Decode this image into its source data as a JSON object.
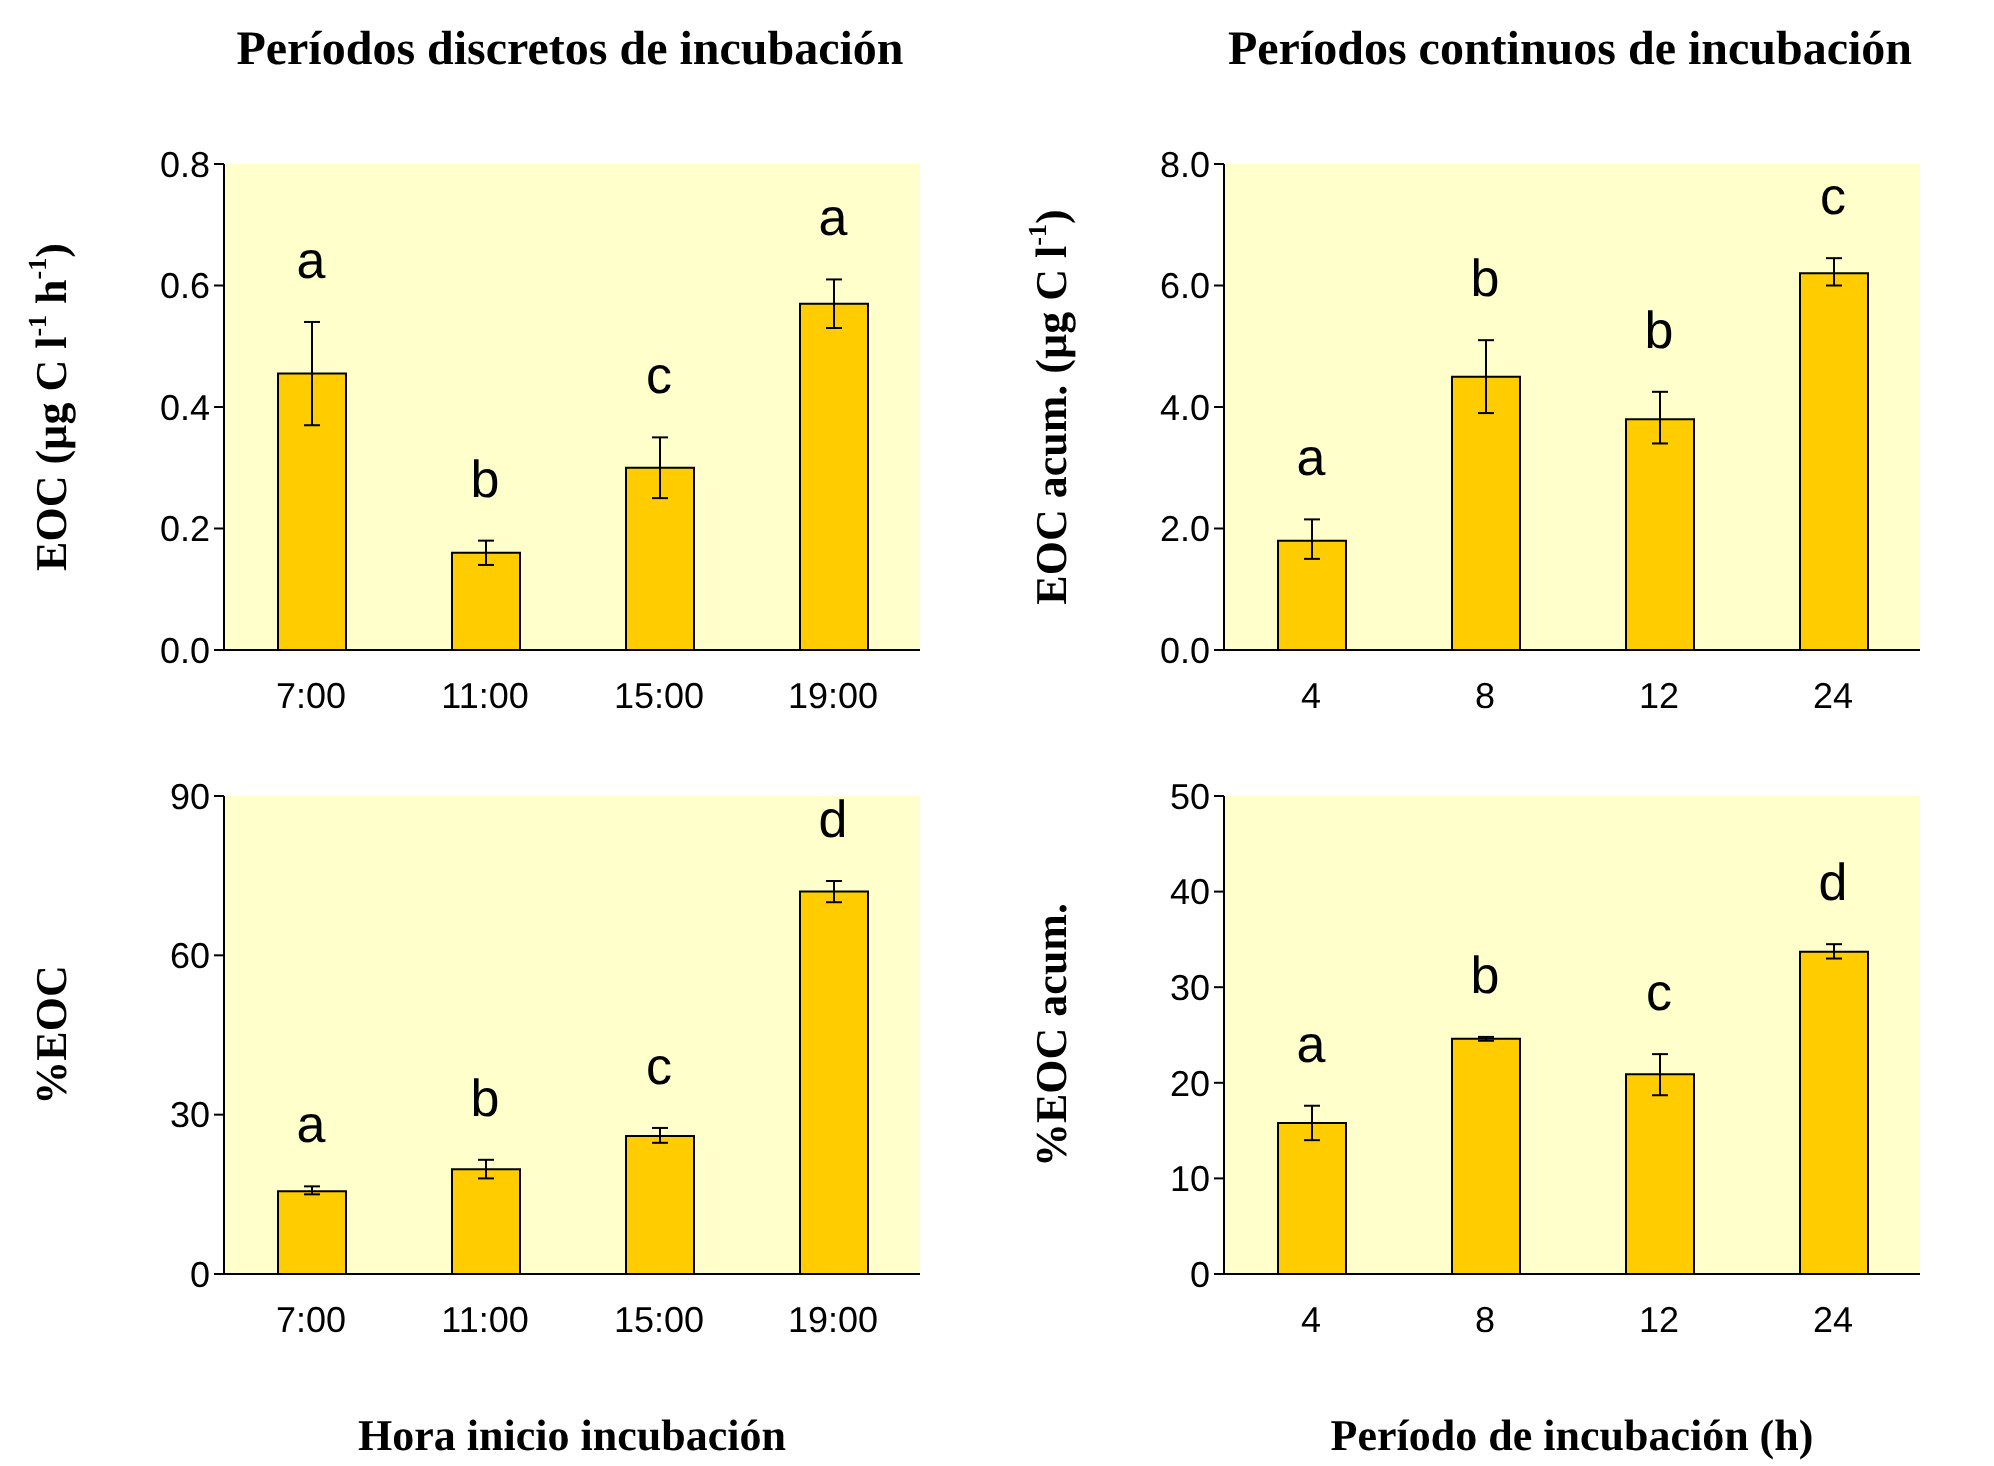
{
  "chart_data": [
    {
      "type": "bar",
      "title": "Períodos discretos de incubación",
      "ylabel": "EOC (µg C l$^{-1}$ h$^{-1}$)",
      "categories": [
        "7:00",
        "11:00",
        "15:00",
        "19:00"
      ],
      "values": [
        0.455,
        0.16,
        0.3,
        0.57
      ],
      "errors": [
        [
          0.37,
          0.54
        ],
        [
          0.14,
          0.18
        ],
        [
          0.25,
          0.35
        ],
        [
          0.53,
          0.61
        ]
      ],
      "color": "#ffcc00",
      "ylim": [
        0,
        0.8
      ],
      "yticks": [
        {
          "value": 0,
          "label": "0.0"
        },
        {
          "value": 0.2,
          "label": "0.2"
        },
        {
          "value": 0.4,
          "label": "0.4"
        },
        {
          "value": 0.6,
          "label": "0.6"
        },
        {
          "value": 0.8,
          "label": "0.8"
        }
      ],
      "annotations": [
        "a",
        "b",
        "c",
        "a"
      ]
    },
    {
      "type": "bar",
      "title": "Períodos continuos de incubación",
      "ylabel": "EOC acum. (µg C l$^{-1}$)",
      "categories": [
        "4",
        "8",
        "12",
        "24"
      ],
      "values": [
        1.8,
        4.5,
        3.8,
        6.2
      ],
      "errors": [
        [
          1.5,
          2.15
        ],
        [
          3.9,
          5.1
        ],
        [
          3.4,
          4.25
        ],
        [
          6.0,
          6.45
        ]
      ],
      "color": "#ffcc00",
      "ylim": [
        0,
        8
      ],
      "yticks": [
        {
          "value": 0,
          "label": "0.0"
        },
        {
          "value": 2,
          "label": "2.0"
        },
        {
          "value": 4,
          "label": "4.0"
        },
        {
          "value": 6,
          "label": "6.0"
        },
        {
          "value": 8,
          "label": "8.0"
        }
      ],
      "annotations": [
        "a",
        "b",
        "b",
        "c"
      ]
    },
    {
      "type": "bar",
      "xlabel": "Hora inicio incubación",
      "ylabel": "%EOC",
      "categories": [
        "7:00",
        "11:00",
        "15:00",
        "19:00"
      ],
      "values": [
        15.6,
        19.7,
        26,
        72
      ],
      "errors": [
        [
          15,
          16.5
        ],
        [
          18,
          21.5
        ],
        [
          24.7,
          27.5
        ],
        [
          70,
          74
        ]
      ],
      "color": "#ffcc00",
      "ylim": [
        0,
        90
      ],
      "yticks": [
        0,
        30,
        60,
        90
      ],
      "annotations": [
        "a",
        "b",
        "c",
        "d"
      ]
    },
    {
      "type": "bar",
      "xlabel": "Período de incubación (h)",
      "ylabel": "%EOC acum.",
      "categories": [
        "4",
        "8",
        "12",
        "24"
      ],
      "values": [
        15.8,
        24.6,
        20.9,
        33.7
      ],
      "errors": [
        [
          14,
          17.6
        ],
        [
          24.4,
          24.8
        ],
        [
          18.7,
          23
        ],
        [
          33,
          34.5
        ]
      ],
      "color": "#ffcc00",
      "ylim": [
        0,
        50
      ],
      "yticks": [
        0,
        10,
        20,
        30,
        40,
        50
      ],
      "annotations": [
        "a",
        "b",
        "c",
        "d"
      ]
    }
  ]
}
